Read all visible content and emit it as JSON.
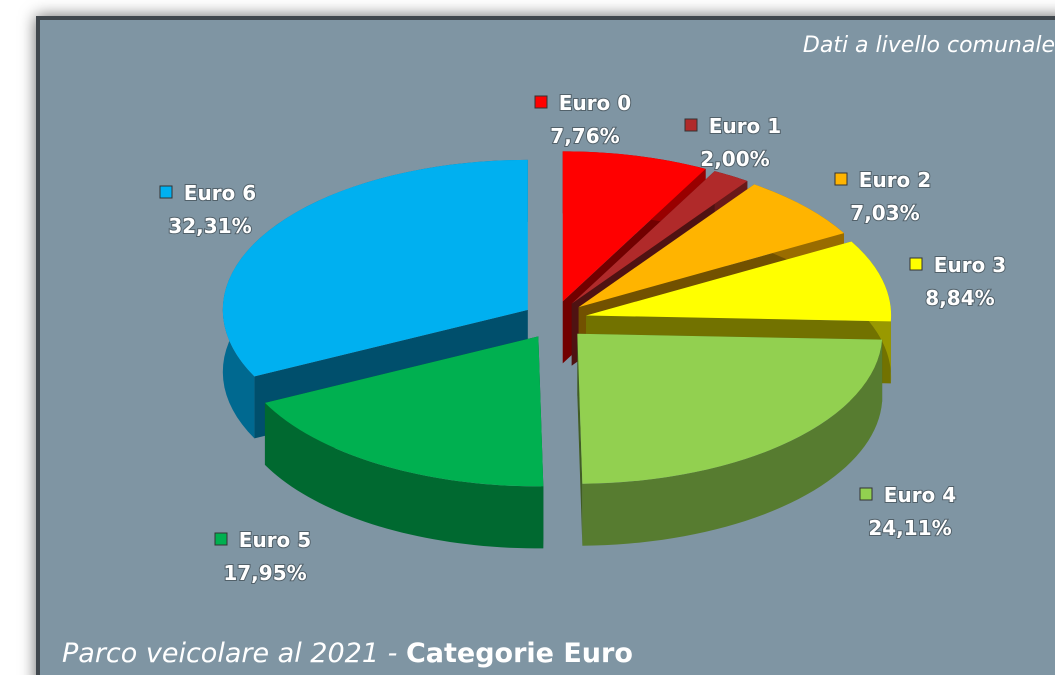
{
  "chart_data": {
    "type": "pie3d",
    "title": [
      "Parco veicolare al 2021 -",
      "Categorie Euro"
    ],
    "annotation": "Dati a livello comunale",
    "categories": [
      "Euro 0",
      "Euro 1",
      "Euro 2",
      "Euro 3",
      "Euro 4",
      "Euro 5",
      "Euro 6"
    ],
    "values": [
      7.76,
      2.0,
      7.03,
      8.84,
      24.11,
      17.95,
      32.31
    ],
    "value_labels": [
      "7,76%",
      "2,00%",
      "7,03%",
      "8,84%",
      "24,11%",
      "17,95%",
      "32,31%"
    ],
    "colors": [
      "#ff0000",
      "#b02a2a",
      "#ffb400",
      "#ffff00",
      "#92d050",
      "#00b050",
      "#00b0f0"
    ]
  }
}
